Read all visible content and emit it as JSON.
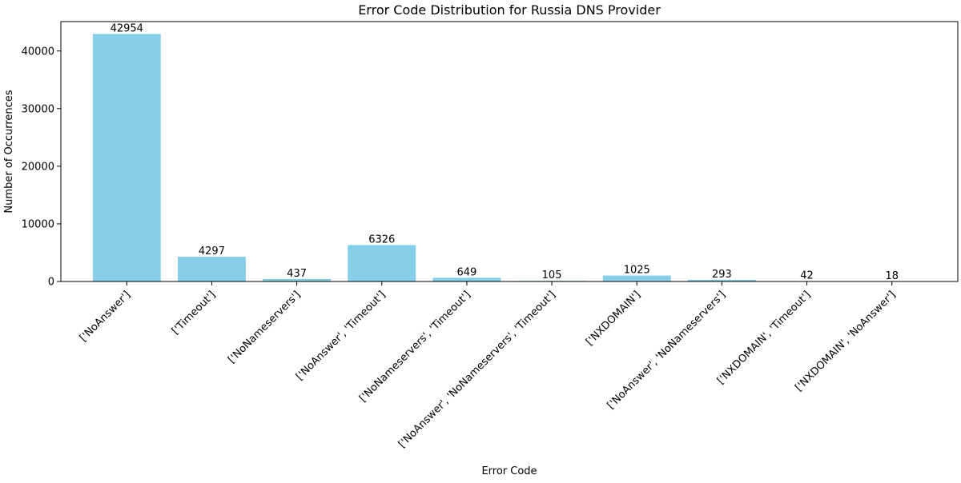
{
  "chart_data": {
    "type": "bar",
    "title": "Error Code Distribution for Russia DNS Provider",
    "xlabel": "Error Code",
    "ylabel": "Number of Occurrences",
    "categories": [
      "['NoAnswer']",
      "['Timeout']",
      "['NoNameservers']",
      "['NoAnswer', 'Timeout']",
      "['NoNameservers', 'Timeout']",
      "['NoAnswer', 'NoNameservers', 'Timeout']",
      "['NXDOMAIN']",
      "['NoAnswer', 'NoNameservers']",
      "['NXDOMAIN', 'Timeout']",
      "['NXDOMAIN', 'NoAnswer']"
    ],
    "values": [
      42954,
      4297,
      437,
      6326,
      649,
      105,
      1025,
      293,
      42,
      18
    ],
    "ylim": [
      0,
      45102
    ],
    "yticks": [
      0,
      10000,
      20000,
      30000,
      40000
    ],
    "grid": false,
    "bar_color": "#87ceeb",
    "data_labels": true
  }
}
